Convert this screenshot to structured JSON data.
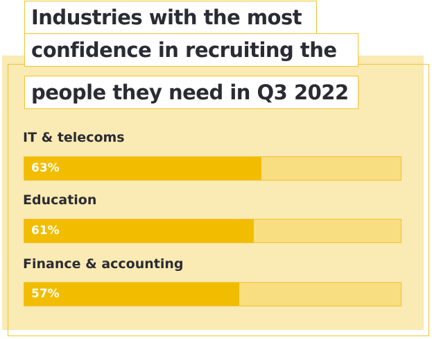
{
  "chart_data": {
    "type": "bar",
    "orientation": "horizontal",
    "title_lines": [
      "Industries with the most",
      "confidence in recruiting the",
      "people they need in Q3 2022"
    ],
    "categories": [
      "IT & telecoms",
      "Education",
      "Finance & accounting"
    ],
    "values": [
      63,
      61,
      57
    ],
    "value_labels": [
      "63%",
      "61%",
      "57%"
    ],
    "xlim": [
      0,
      100
    ],
    "grid": false,
    "legend": "none",
    "colors": {
      "bar": "#f2bd00",
      "track": "#f8de80",
      "panel": "#faeab4",
      "accent": "#f2c230",
      "text": "#2b2b33",
      "bar_text": "#ffffff"
    }
  }
}
